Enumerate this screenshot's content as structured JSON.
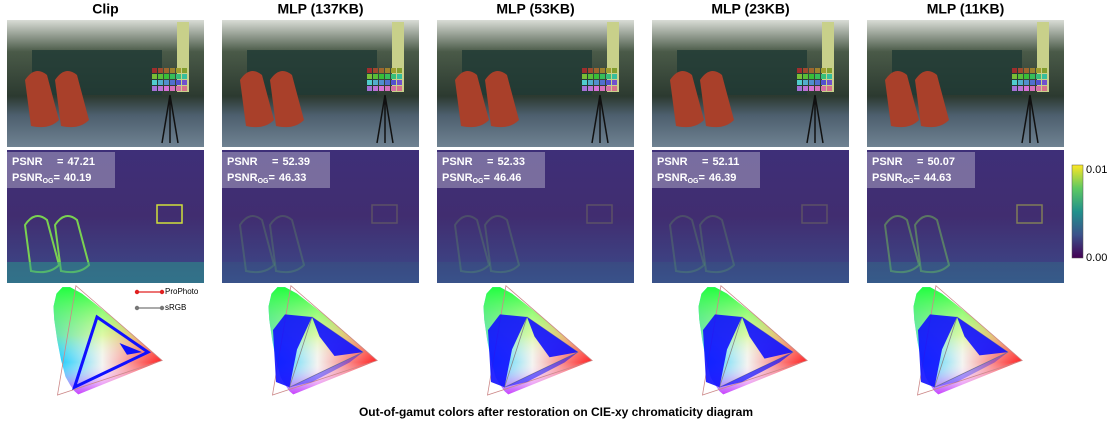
{
  "columns": [
    {
      "title": "Clip",
      "psnr": 47.21,
      "psnr_og": 40.19
    },
    {
      "title": "MLP (137KB)",
      "psnr": 52.39,
      "psnr_og": 46.33
    },
    {
      "title": "MLP (53KB)",
      "psnr": 52.33,
      "psnr_og": 46.46
    },
    {
      "title": "MLP (23KB)",
      "psnr": 52.11,
      "psnr_og": 46.39
    },
    {
      "title": "MLP (11KB)",
      "psnr": 50.07,
      "psnr_og": 44.63
    }
  ],
  "metric_labels": {
    "psnr": "PSNR",
    "psnr_og": "PSNR",
    "og_subscript": "OG",
    "equals": "="
  },
  "colorbar": {
    "max": "0.01",
    "min": "0.00"
  },
  "legend": [
    "ProPhoto",
    "sRGB"
  ],
  "caption": "Out-of-gamut colors after restoration on CIE-xy chromaticity diagram"
}
